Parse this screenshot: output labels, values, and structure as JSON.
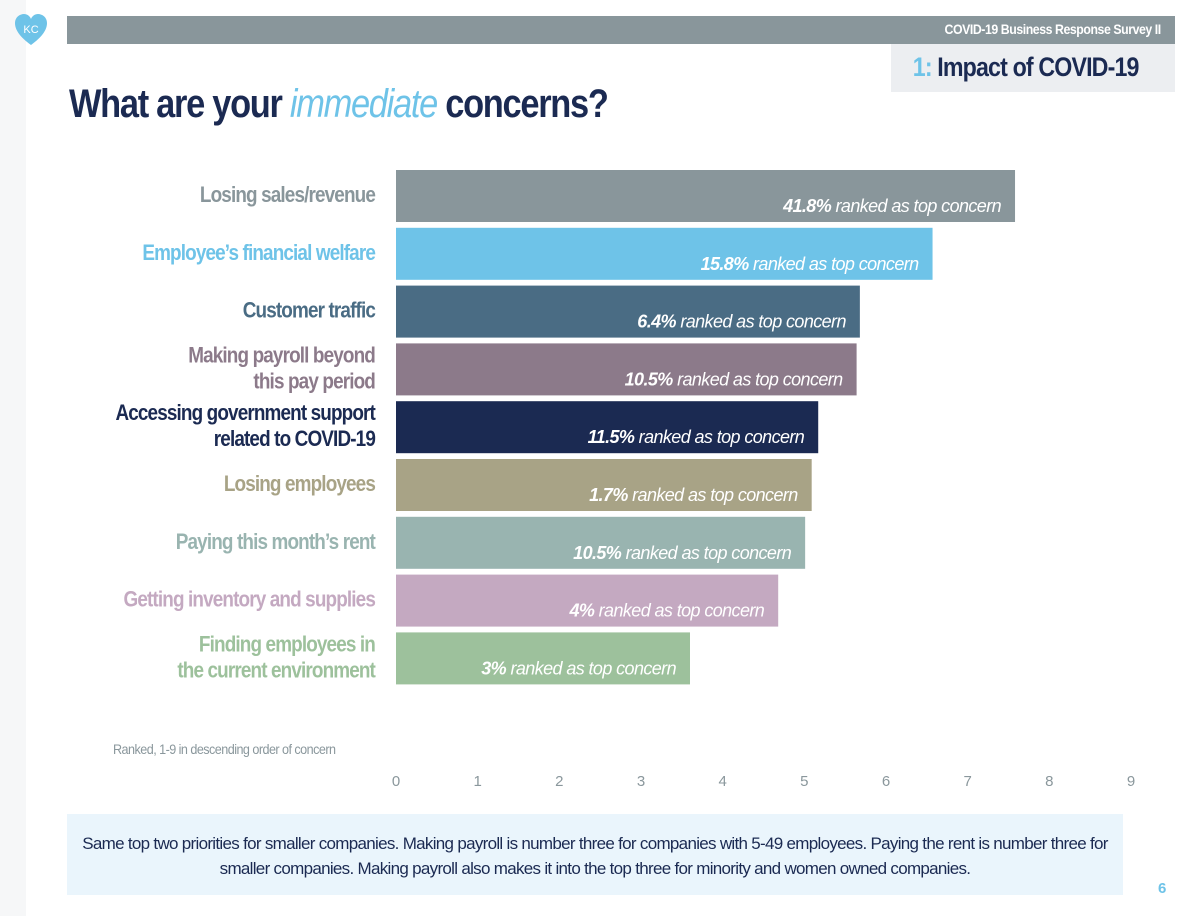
{
  "header": {
    "logo_text": "KC",
    "survey_title": "COVID-19 Business Response Survey II",
    "section_number": "1:",
    "section_title": "Impact of COVID-19"
  },
  "page_title": {
    "before": "What are your ",
    "emphasis": "immediate",
    "after": " concerns?"
  },
  "colors": {
    "navy": "#1b2a52",
    "accent_blue": "#6ec3e8",
    "gray": "#89969b",
    "footer_bg": "#eaf5fc"
  },
  "chart_data": {
    "type": "bar",
    "orientation": "horizontal",
    "title": "What are your immediate concerns?",
    "xlabel": "",
    "ylabel": "",
    "xlim": [
      0,
      9
    ],
    "xticks": [
      "0",
      "1",
      "2",
      "3",
      "4",
      "5",
      "6",
      "7",
      "8",
      "9"
    ],
    "grid": false,
    "note": "Ranked, 1-9 in descending order of concern",
    "categories": [
      "Losing sales/revenue",
      "Employee’s financial welfare",
      "Customer traffic",
      "Making payroll beyond this pay period",
      "Accessing government support related to COVID-19",
      "Losing employees",
      "Paying this month’s rent",
      "Getting inventory and supplies",
      "Finding employees in the current environment"
    ],
    "category_lines": [
      [
        "Losing sales/revenue"
      ],
      [
        "Employee’s financial welfare"
      ],
      [
        "Customer traffic"
      ],
      [
        "Making payroll beyond",
        "this pay period"
      ],
      [
        "Accessing government support",
        "related to COVID-19"
      ],
      [
        "Losing employees"
      ],
      [
        "Paying this month’s rent"
      ],
      [
        "Getting inventory and supplies"
      ],
      [
        "Finding employees in",
        "the current environment"
      ]
    ],
    "values": [
      7.58,
      6.57,
      5.68,
      5.64,
      5.17,
      5.09,
      5.01,
      4.68,
      3.6
    ],
    "data_labels": [
      "41.8% ranked as top concern",
      "15.8% ranked as top concern",
      "6.4% ranked as top concern",
      "10.5% ranked as top concern",
      "11.5% ranked as top concern",
      "1.7% ranked as top concern",
      "10.5% ranked as top concern",
      "4% ranked as top concern",
      "3% ranked as top concern"
    ],
    "bar_colors": [
      "#89969b",
      "#6ec3e8",
      "#4a6c84",
      "#8c7a8a",
      "#1b2a52",
      "#a8a386",
      "#99b4b0",
      "#c4a9c1",
      "#9dc19c"
    ]
  },
  "footer": {
    "text": "Same top two priorities for smaller companies. Making payroll is number three for companies with 5-49 employees. Paying the rent is number three for smaller companies. Making payroll also makes it into the top three for minority and women owned companies.",
    "page_number": "6"
  }
}
